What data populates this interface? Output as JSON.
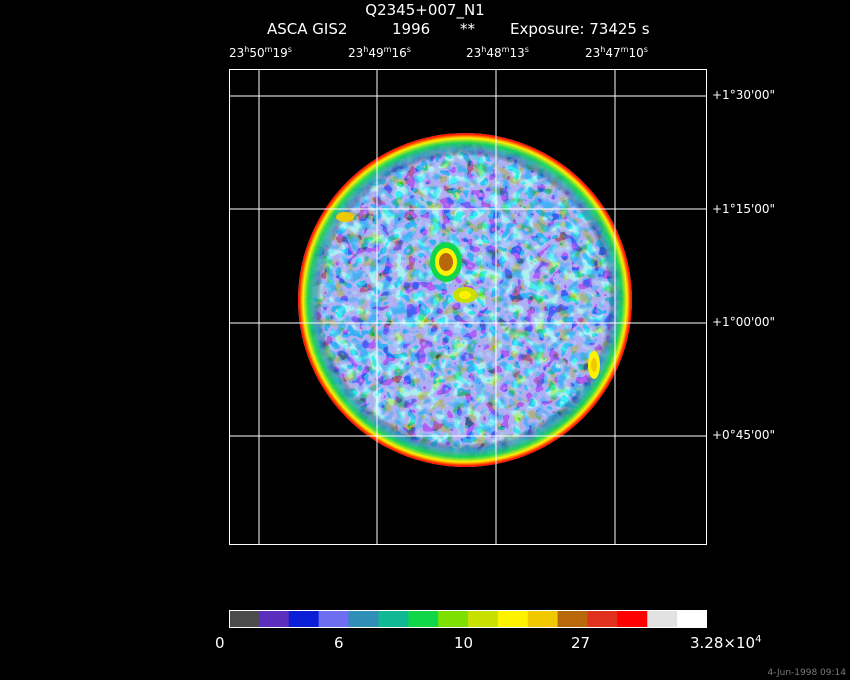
{
  "header": {
    "title": "Q2345+007_N1",
    "instrument": "ASCA GIS2",
    "year": "1996",
    "marker": "**",
    "exposure": "Exposure: 73425 s"
  },
  "ra_labels": [
    {
      "h": "23",
      "hs": "h",
      "m": "50",
      "ms": "m",
      "s": "19",
      "ss": "s"
    },
    {
      "h": "23",
      "hs": "h",
      "m": "49",
      "ms": "m",
      "s": "16",
      "ss": "s"
    },
    {
      "h": "23",
      "hs": "h",
      "m": "48",
      "ms": "m",
      "s": "13",
      "ss": "s"
    },
    {
      "h": "23",
      "hs": "h",
      "m": "47",
      "ms": "m",
      "s": "10",
      "ss": "s"
    }
  ],
  "dec_labels": [
    "+1°30'00\"",
    "+1°15'00\"",
    "+1°00'00\"",
    "+0°45'00\""
  ],
  "colorbar": {
    "colors": [
      "#4b4b4b",
      "#5b2ebd",
      "#0a1ed6",
      "#6e6ef0",
      "#2f8fb7",
      "#10b894",
      "#11d64a",
      "#7de000",
      "#c7e000",
      "#fff200",
      "#f0c800",
      "#b8680a",
      "#e0301e",
      "#ff0000",
      "#e2e2e2",
      "#ffffff"
    ],
    "ticks": [
      {
        "text": "0"
      },
      {
        "text": "6"
      },
      {
        "text": "10"
      },
      {
        "text": "27"
      },
      {
        "text": "3.28×10",
        "sup": "4"
      }
    ]
  },
  "stamp": "4-Jun-1998 09:14"
}
